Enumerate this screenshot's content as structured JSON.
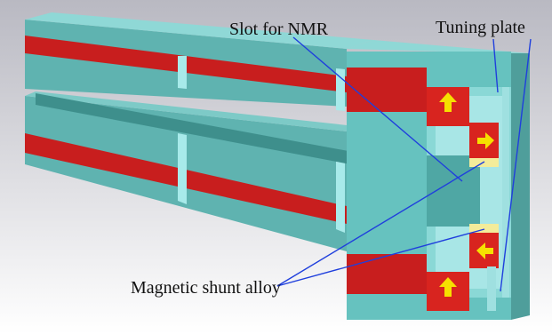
{
  "labels": {
    "slot_nmr": "Slot for NMR",
    "tuning_plate": "Tuning plate",
    "shunt_alloy": "Magnetic shunt alloy"
  },
  "colors": {
    "steel": "#66c2bf",
    "steel_dark": "#4a9e9a",
    "steel_light": "#9fe6e6",
    "magnet": "#d8241f",
    "magnet_dark": "#a8161a",
    "arrow": "#f6e000",
    "shunt": "#f3ec9a",
    "leader": "#1f3fdd"
  },
  "icons": [
    "up-arrow-icon",
    "right-arrow-icon",
    "left-arrow-icon",
    "up-arrow-icon"
  ]
}
